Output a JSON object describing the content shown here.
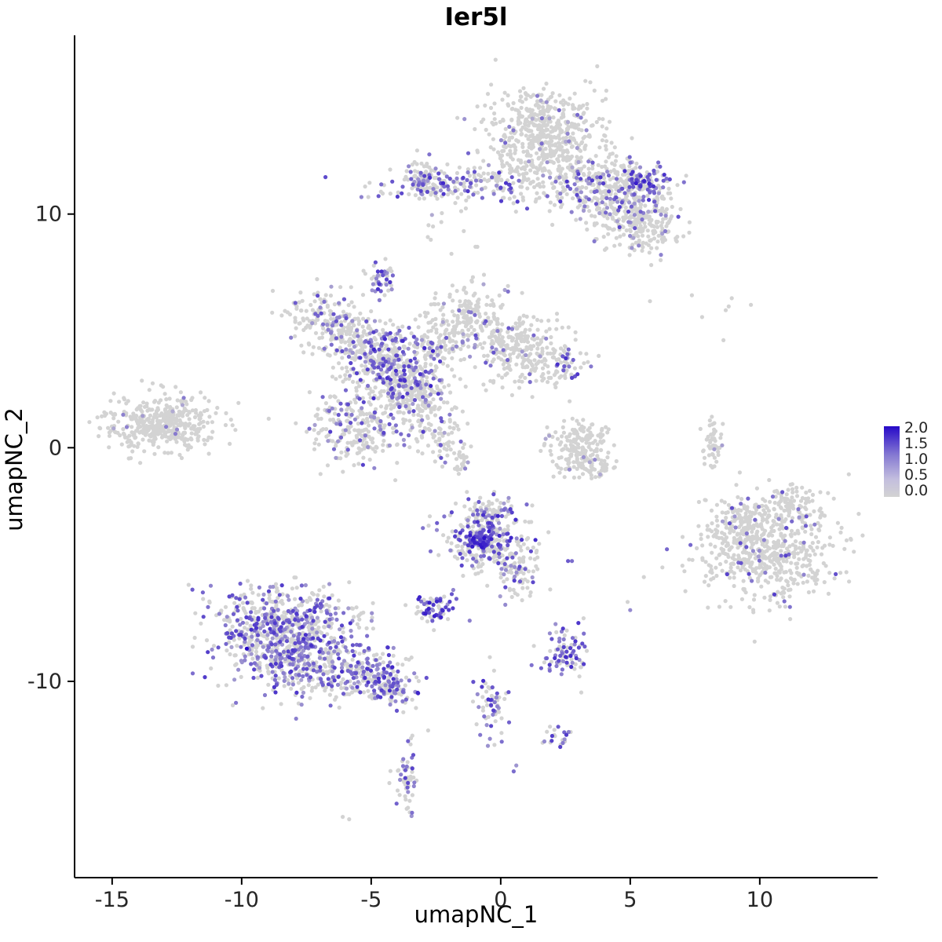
{
  "chart_data": {
    "type": "scatter",
    "title": "Ier5l",
    "xlabel": "umapNC_1",
    "ylabel": "umapNC_2",
    "xlim": [
      -16.45,
      14.55
    ],
    "ylim": [
      -18.4,
      17.65
    ],
    "xticks": [
      {
        "v": -15,
        "label": "-15"
      },
      {
        "v": -10,
        "label": "-10"
      },
      {
        "v": -5,
        "label": "-5"
      },
      {
        "v": 0,
        "label": "0"
      },
      {
        "v": 5,
        "label": "5"
      },
      {
        "v": 10,
        "label": "10"
      }
    ],
    "yticks": [
      {
        "v": 10,
        "label": "10"
      },
      {
        "v": 0,
        "label": "0"
      },
      {
        "v": -10,
        "label": "-10"
      }
    ],
    "grid": false,
    "point_radius": 2.6,
    "colors": {
      "low": "#d3d3d3",
      "high": "#2609c8",
      "axis": "#000000",
      "text": "#262626",
      "background": "#ffffff"
    },
    "legend": {
      "position": "right",
      "labels": [
        "2.0",
        "1.5",
        "1.0",
        "0.5",
        "0.0"
      ],
      "values": [
        2.0,
        1.5,
        1.0,
        0.5,
        0.0
      ],
      "stops": [
        {
          "at": 0.0,
          "color": "#2609c8"
        },
        {
          "at": 0.4,
          "color": "#8478d2"
        },
        {
          "at": 0.75,
          "color": "#c3bede"
        },
        {
          "at": 1.0,
          "color": "#d3d3d3"
        }
      ]
    },
    "value_range": [
      0.0,
      2.0
    ],
    "clusters": [
      {
        "name": "top-main",
        "n": 450,
        "c": [
          1.7,
          13.6
        ],
        "s": [
          1.05,
          0.85
        ],
        "f": 0.04,
        "lo": 0.3,
        "hi": 1.0
      },
      {
        "name": "top-fringe",
        "n": 140,
        "c": [
          1.9,
          12.25
        ],
        "s": [
          1.5,
          0.5
        ],
        "f": 0.08,
        "lo": 0.3,
        "hi": 1.2
      },
      {
        "name": "band-right",
        "n": 300,
        "c": [
          3.9,
          11.2
        ],
        "s": [
          1.1,
          0.55
        ],
        "f": 0.18,
        "lo": 0.4,
        "hi": 1.6
      },
      {
        "name": "band-right-hot",
        "n": 90,
        "c": [
          5.5,
          11.3
        ],
        "s": [
          0.45,
          0.35
        ],
        "f": 0.55,
        "lo": 0.6,
        "hi": 1.8
      },
      {
        "name": "right-lobe",
        "n": 260,
        "c": [
          5.3,
          9.7
        ],
        "s": [
          0.8,
          0.7
        ],
        "f": 0.12,
        "lo": 0.3,
        "hi": 1.3
      },
      {
        "name": "band-left",
        "n": 200,
        "c": [
          -1.4,
          11.3
        ],
        "s": [
          1.55,
          0.35
        ],
        "f": 0.38,
        "lo": 0.5,
        "hi": 1.7
      },
      {
        "name": "band-left-clump",
        "n": 70,
        "c": [
          -2.9,
          11.4
        ],
        "s": [
          0.35,
          0.45
        ],
        "f": 0.3,
        "lo": 0.4,
        "hi": 1.4
      },
      {
        "name": "sparse-above",
        "n": 10,
        "c": [
          -2.0,
          9.3
        ],
        "s": [
          0.8,
          0.5
        ],
        "f": 0.1,
        "lo": 0.3,
        "hi": 0.8
      },
      {
        "name": "clump-upper",
        "n": 45,
        "c": [
          -4.6,
          7.3
        ],
        "s": [
          0.28,
          0.38
        ],
        "f": 0.6,
        "lo": 0.5,
        "hi": 1.6
      },
      {
        "name": "mid-upperleft",
        "n": 150,
        "c": [
          -6.9,
          5.6
        ],
        "s": [
          0.75,
          0.55
        ],
        "f": 0.2,
        "lo": 0.4,
        "hi": 1.3
      },
      {
        "name": "mid-left2",
        "n": 120,
        "c": [
          -5.7,
          4.7
        ],
        "s": [
          0.6,
          0.5
        ],
        "f": 0.12,
        "lo": 0.3,
        "hi": 1.2
      },
      {
        "name": "mid-topcenter",
        "n": 180,
        "c": [
          -1.2,
          5.6
        ],
        "s": [
          0.75,
          0.65
        ],
        "f": 0.1,
        "lo": 0.3,
        "hi": 1.2
      },
      {
        "name": "mid-right",
        "n": 260,
        "c": [
          0.9,
          4.2
        ],
        "s": [
          1.0,
          0.75
        ],
        "f": 0.08,
        "lo": 0.3,
        "hi": 1.2
      },
      {
        "name": "mid-right-tip",
        "n": 50,
        "c": [
          2.4,
          3.5
        ],
        "s": [
          0.35,
          0.35
        ],
        "f": 0.25,
        "lo": 0.5,
        "hi": 1.6
      },
      {
        "name": "central-dense",
        "n": 360,
        "c": [
          -4.4,
          3.7
        ],
        "s": [
          0.85,
          0.75
        ],
        "f": 0.28,
        "lo": 0.4,
        "hi": 1.7
      },
      {
        "name": "central-dense2",
        "n": 210,
        "c": [
          -3.4,
          2.3
        ],
        "s": [
          0.6,
          0.6
        ],
        "f": 0.3,
        "lo": 0.4,
        "hi": 1.6
      },
      {
        "name": "bridge",
        "n": 100,
        "c": [
          -2.4,
          4.4
        ],
        "s": [
          0.6,
          0.5
        ],
        "f": 0.18,
        "lo": 0.3,
        "hi": 1.3
      },
      {
        "name": "lower-lobe",
        "n": 260,
        "c": [
          -5.6,
          0.8
        ],
        "s": [
          0.85,
          0.8
        ],
        "f": 0.18,
        "lo": 0.4,
        "hi": 1.4
      },
      {
        "name": "strand",
        "n": 85,
        "c": [
          -2.4,
          0.6
        ],
        "s": [
          0.6,
          0.6
        ],
        "f": 0.12,
        "lo": 0.3,
        "hi": 1.2
      },
      {
        "name": "strand2",
        "n": 25,
        "c": [
          -1.5,
          -0.6
        ],
        "s": [
          0.3,
          0.35
        ],
        "f": 0.1,
        "lo": 0.3,
        "hi": 1.0
      },
      {
        "name": "far-left",
        "n": 360,
        "c": [
          -13.1,
          1.1
        ],
        "s": [
          1.0,
          0.6
        ],
        "f": 0.02,
        "lo": 0.3,
        "hi": 0.9
      },
      {
        "name": "far-left-fringe",
        "n": 80,
        "c": [
          -13.4,
          0.6
        ],
        "s": [
          1.3,
          0.4
        ],
        "f": 0.02,
        "lo": 0.3,
        "hi": 0.8
      },
      {
        "name": "crescent",
        "n": 150,
        "c": [
          2.9,
          0.2
        ],
        "s": [
          0.55,
          0.55
        ],
        "f": 0.02,
        "lo": 0.3,
        "hi": 0.8
      },
      {
        "name": "crescent-arc",
        "n": 70,
        "c": [
          3.4,
          -0.8
        ],
        "s": [
          0.6,
          0.25
        ],
        "f": 0.02,
        "lo": 0.3,
        "hi": 0.8
      },
      {
        "name": "right-strip",
        "n": 55,
        "c": [
          8.15,
          0.2
        ],
        "s": [
          0.18,
          0.6
        ],
        "f": 0.02,
        "lo": 0.3,
        "hi": 0.8
      },
      {
        "name": "topright-sparse",
        "n": 7,
        "c": [
          8.7,
          6.4
        ],
        "s": [
          1.0,
          0.35
        ],
        "f": 0.0,
        "lo": 0.3,
        "hi": 0.5
      },
      {
        "name": "right-big",
        "n": 560,
        "c": [
          10.2,
          -4.5
        ],
        "s": [
          1.35,
          1.05
        ],
        "f": 0.07,
        "lo": 0.4,
        "hi": 1.5
      },
      {
        "name": "right-big-fringe",
        "n": 110,
        "c": [
          9.4,
          -3.2
        ],
        "s": [
          0.7,
          0.5
        ],
        "f": 0.08,
        "lo": 0.4,
        "hi": 1.3
      },
      {
        "name": "right-big-tail",
        "n": 80,
        "c": [
          11.4,
          -2.4
        ],
        "s": [
          0.7,
          0.35
        ],
        "f": 0.05,
        "lo": 0.3,
        "hi": 1.2
      },
      {
        "name": "center-bottom",
        "n": 280,
        "c": [
          -0.6,
          -3.8
        ],
        "s": [
          0.85,
          0.75
        ],
        "f": 0.38,
        "lo": 0.5,
        "hi": 1.7
      },
      {
        "name": "cb-hot",
        "n": 70,
        "c": [
          -0.75,
          -4.05
        ],
        "s": [
          0.3,
          0.25
        ],
        "f": 0.8,
        "lo": 0.8,
        "hi": 2.0
      },
      {
        "name": "cb-tail",
        "n": 90,
        "c": [
          0.7,
          -5.3
        ],
        "s": [
          0.45,
          0.6
        ],
        "f": 0.25,
        "lo": 0.4,
        "hi": 1.4
      },
      {
        "name": "cb-top",
        "n": 40,
        "c": [
          -0.3,
          -2.65
        ],
        "s": [
          0.4,
          0.25
        ],
        "f": 0.3,
        "lo": 0.4,
        "hi": 1.4
      },
      {
        "name": "small-mid",
        "n": 70,
        "c": [
          -2.5,
          -6.9
        ],
        "s": [
          0.4,
          0.32
        ],
        "f": 0.5,
        "lo": 0.5,
        "hi": 1.8
      },
      {
        "name": "lowerleft-main",
        "n": 700,
        "c": [
          -8.3,
          -8.3
        ],
        "s": [
          1.25,
          1.0
        ],
        "f": 0.45,
        "lo": 0.4,
        "hi": 1.6
      },
      {
        "name": "ll-fringe",
        "n": 170,
        "c": [
          -8.3,
          -7.0
        ],
        "s": [
          1.6,
          0.6
        ],
        "f": 0.35,
        "lo": 0.4,
        "hi": 1.4
      },
      {
        "name": "ll-tail",
        "n": 240,
        "c": [
          -5.5,
          -9.7
        ],
        "s": [
          1.0,
          0.55
        ],
        "f": 0.4,
        "lo": 0.4,
        "hi": 1.6
      },
      {
        "name": "ll-tail2",
        "n": 80,
        "c": [
          -4.2,
          -10.3
        ],
        "s": [
          0.5,
          0.4
        ],
        "f": 0.45,
        "lo": 0.5,
        "hi": 1.7
      },
      {
        "name": "small-right-low",
        "n": 90,
        "c": [
          2.4,
          -8.9
        ],
        "s": [
          0.45,
          0.55
        ],
        "f": 0.45,
        "lo": 0.5,
        "hi": 1.6
      },
      {
        "name": "strand-down",
        "n": 60,
        "c": [
          -0.35,
          -11.0
        ],
        "s": [
          0.28,
          0.75
        ],
        "f": 0.45,
        "lo": 0.5,
        "hi": 1.6
      },
      {
        "name": "clump-low",
        "n": 22,
        "c": [
          2.2,
          -12.4
        ],
        "s": [
          0.3,
          0.3
        ],
        "f": 0.5,
        "lo": 0.5,
        "hi": 1.5
      },
      {
        "name": "strand-bottom",
        "n": 55,
        "c": [
          -3.6,
          -14.3
        ],
        "s": [
          0.25,
          0.75
        ],
        "f": 0.35,
        "lo": 0.4,
        "hi": 1.4
      }
    ],
    "singles": [
      {
        "x": -9.8,
        "y": -8.6,
        "v": 2.0
      },
      {
        "x": 0.5,
        "y": -13.85,
        "v": 0.9
      },
      {
        "x": 0.6,
        "y": -13.6,
        "v": 0.5
      },
      {
        "x": 4.9,
        "y": -6.6,
        "v": 0
      },
      {
        "x": 5.0,
        "y": -6.95,
        "v": 0.6
      },
      {
        "x": 3.2,
        "y": -7.3,
        "v": 0
      },
      {
        "x": -6.1,
        "y": -15.8,
        "v": 0
      },
      {
        "x": -5.85,
        "y": -15.9,
        "v": 0
      },
      {
        "x": -2.8,
        "y": -12.1,
        "v": 0
      },
      {
        "x": -3.3,
        "y": -10.45,
        "v": 0.5
      },
      {
        "x": 8.6,
        "y": 4.6,
        "v": 0
      },
      {
        "x": -1.2,
        "y": -7.4,
        "v": 0.7
      },
      {
        "x": -2.7,
        "y": 8.9,
        "v": 0
      },
      {
        "x": -1.9,
        "y": 8.3,
        "v": 0
      },
      {
        "x": -0.9,
        "y": 8.6,
        "v": 0
      },
      {
        "x": 2.6,
        "y": -4.85,
        "v": 1.1
      },
      {
        "x": 2.75,
        "y": -4.85,
        "v": 0.9
      }
    ]
  }
}
